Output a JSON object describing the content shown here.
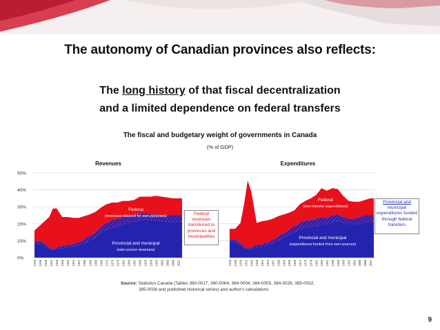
{
  "slide": {
    "title": "The autonomy of Canadian provinces also reflects:",
    "subtitle_line1_before": "The ",
    "subtitle_line1_underlined": "long history",
    "subtitle_line1_after": " of that fiscal decentralization",
    "subtitle_line2": "and a limited dependence on federal transfers",
    "page_number": "9",
    "colors": {
      "federal": "#e8101a",
      "provincial": "#2323b0",
      "hatch": "#8a2a8a",
      "banner_red": "#c8102e"
    }
  },
  "callouts": {
    "federal_transfers": [
      "Federal",
      "revenues",
      "transferred to",
      "provinces and",
      "municipalities"
    ],
    "provincial_funded": [
      "Provincial and",
      "municipal",
      "expenditures funded",
      "through federal",
      "transfers"
    ]
  },
  "source": {
    "label": "Source:",
    "line1": "Statistics Canada (Tables 380-0017, 380-0064, 384-0004, 384-0005, 384-0026, 385-0032,",
    "line2": "385-0038 and published historical series) and author's calculations"
  },
  "chart_data": {
    "type": "area",
    "title": "The fiscal and budgetary weight of governments in Canada",
    "unit_label": "(% of GDP)",
    "ylim": [
      0,
      50
    ],
    "yticks": [
      "0%",
      "10%",
      "20%",
      "30%",
      "40%",
      "50%"
    ],
    "grid": true,
    "panels": [
      {
        "title": "Revenues",
        "x_start": 1933,
        "x_end": 2013,
        "tick_labels": [
          "1933",
          "1936",
          "1939",
          "1942",
          "1945",
          "1948",
          "1951",
          "1954",
          "1957",
          "1960",
          "1963",
          "1966",
          "1969",
          "1972",
          "1975",
          "1978",
          "1981",
          "1984",
          "1987",
          "1990",
          "1993",
          "1996",
          "1999",
          "2002",
          "2005",
          "2008",
          "2011"
        ],
        "series": [
          {
            "name": "Provincial and municipal",
            "sublabel": "(own-source revenues)",
            "x": [
              1933,
              1936,
              1939,
              1941,
              1943,
              1945,
              1948,
              1951,
              1954,
              1957,
              1960,
              1963,
              1966,
              1969,
              1972,
              1975,
              1978,
              1981,
              1984,
              1987,
              1990,
              1993,
              1996,
              1999,
              2002,
              2005,
              2008,
              2011,
              2013
            ],
            "values": [
              8.5,
              8.5,
              6.5,
              5.0,
              4.5,
              5.0,
              5.5,
              6.0,
              6.5,
              7.0,
              8.5,
              10.0,
              12.0,
              14.5,
              16.5,
              17.5,
              18.5,
              19.5,
              20.5,
              21.0,
              22.0,
              22.5,
              22.0,
              22.0,
              21.5,
              21.0,
              21.0,
              21.0,
              21.0
            ]
          },
          {
            "name": "Federal revenues transferred to provinces and municipalities",
            "x": [
              1933,
              1936,
              1939,
              1941,
              1943,
              1945,
              1948,
              1951,
              1954,
              1957,
              1960,
              1963,
              1966,
              1969,
              1972,
              1975,
              1978,
              1981,
              1984,
              1987,
              1990,
              1993,
              1996,
              1999,
              2002,
              2005,
              2008,
              2011,
              2013
            ],
            "values": [
              1.0,
              1.5,
              1.5,
              1.0,
              0.5,
              1.0,
              1.5,
              1.5,
              1.5,
              2.0,
              2.5,
              3.0,
              3.0,
              3.5,
              4.0,
              4.5,
              4.5,
              4.5,
              4.5,
              4.0,
              4.0,
              4.0,
              3.5,
              3.5,
              3.5,
              4.0,
              4.0,
              4.0,
              4.0
            ]
          },
          {
            "name": "Federal",
            "sublabel": "(revenues retained for own-purposes)",
            "x": [
              1933,
              1936,
              1939,
              1941,
              1943,
              1945,
              1948,
              1951,
              1954,
              1957,
              1960,
              1963,
              1966,
              1969,
              1972,
              1975,
              1978,
              1981,
              1984,
              1987,
              1990,
              1993,
              1996,
              1999,
              2002,
              2005,
              2008,
              2011,
              2013
            ],
            "values": [
              6.5,
              9.0,
              14.0,
              18.0,
              24.0,
              23.0,
              17.0,
              16.5,
              15.5,
              14.5,
              13.5,
              12.5,
              12.0,
              11.5,
              11.0,
              10.5,
              9.5,
              9.5,
              8.5,
              9.0,
              10.0,
              9.5,
              10.5,
              11.0,
              11.0,
              10.5,
              10.0,
              10.0,
              10.0
            ]
          }
        ]
      },
      {
        "title": "Expenditures",
        "x_start": 1933,
        "x_end": 2013,
        "tick_labels": [
          "1933",
          "1936",
          "1939",
          "1942",
          "1945",
          "1948",
          "1951",
          "1954",
          "1957",
          "1960",
          "1963",
          "1966",
          "1969",
          "1972",
          "1975",
          "1978",
          "1981",
          "1984",
          "1987",
          "1990",
          "1993",
          "1996",
          "1999",
          "2002",
          "2005",
          "2008",
          "2011"
        ],
        "series": [
          {
            "name": "Provincial and municipal",
            "sublabel": "(expenditures funded from own sources)",
            "x": [
              1933,
              1936,
              1939,
              1941,
              1943,
              1945,
              1948,
              1951,
              1954,
              1957,
              1960,
              1963,
              1966,
              1969,
              1972,
              1975,
              1978,
              1981,
              1984,
              1987,
              1990,
              1993,
              1996,
              1999,
              2002,
              2005,
              2008,
              2011,
              2013
            ],
            "values": [
              10.0,
              9.0,
              7.0,
              5.5,
              5.0,
              5.0,
              6.0,
              6.5,
              7.5,
              8.5,
              10.0,
              11.5,
              13.5,
              15.0,
              16.5,
              17.5,
              17.5,
              18.5,
              19.5,
              19.5,
              21.0,
              21.5,
              20.5,
              19.5,
              19.5,
              20.0,
              21.0,
              21.0,
              21.0
            ]
          },
          {
            "name": "Provincial and municipal expenditures funded through federal transfers",
            "x": [
              1933,
              1936,
              1939,
              1941,
              1943,
              1945,
              1948,
              1951,
              1954,
              1957,
              1960,
              1963,
              1966,
              1969,
              1972,
              1975,
              1978,
              1981,
              1984,
              1987,
              1990,
              1993,
              1996,
              1999,
              2002,
              2005,
              2008,
              2011,
              2013
            ],
            "values": [
              1.0,
              1.5,
              1.5,
              1.0,
              0.5,
              1.0,
              1.5,
              1.5,
              1.5,
              2.0,
              2.5,
              3.0,
              3.0,
              3.5,
              4.0,
              4.5,
              4.5,
              4.5,
              4.5,
              4.0,
              4.0,
              4.0,
              3.5,
              3.5,
              3.5,
              4.0,
              4.0,
              4.0,
              4.0
            ]
          },
          {
            "name": "Federal",
            "sublabel": "(non-transfer expenditures)",
            "x": [
              1933,
              1936,
              1939,
              1941,
              1943,
              1945,
              1948,
              1951,
              1954,
              1957,
              1960,
              1963,
              1966,
              1969,
              1972,
              1975,
              1978,
              1981,
              1984,
              1987,
              1990,
              1993,
              1996,
              1999,
              2002,
              2005,
              2008,
              2011,
              2013
            ],
            "values": [
              6.0,
              6.5,
              12.0,
              25.0,
              40.0,
              33.0,
              13.0,
              13.5,
              13.0,
              12.5,
              12.0,
              11.0,
              10.0,
              9.5,
              11.0,
              11.5,
              13.0,
              14.0,
              17.0,
              16.0,
              16.0,
              15.0,
              12.5,
              10.5,
              10.0,
              9.0,
              9.0,
              10.0,
              10.0
            ]
          }
        ]
      }
    ]
  }
}
